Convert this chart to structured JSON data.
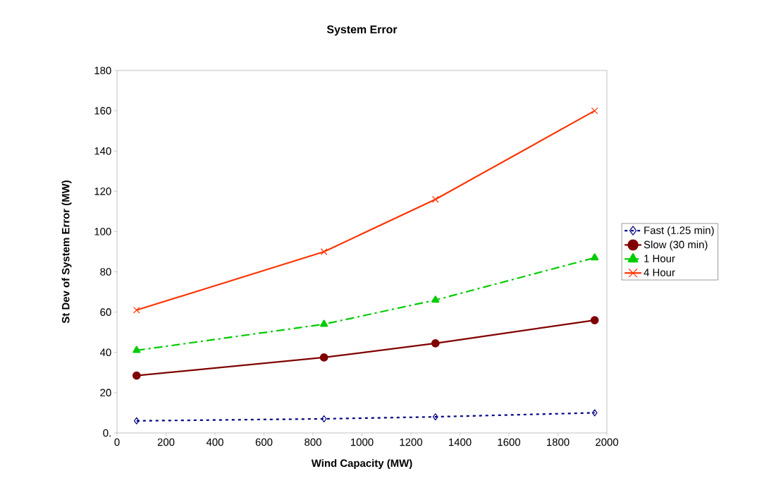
{
  "chart_data": {
    "type": "line",
    "title": "System Error",
    "xlabel": "Wind Capacity (MW)",
    "ylabel": "St Dev of System Error (MW)",
    "x": [
      80,
      845,
      1300,
      1950
    ],
    "series": [
      {
        "name": "Fast (1.25 min)",
        "color": "#000080",
        "values": [
          6,
          7,
          8,
          10
        ],
        "marker": "diamond",
        "line_style": "dotted"
      },
      {
        "name": "Slow (30 min)",
        "color": "#800000",
        "values": [
          28.5,
          37.5,
          44.5,
          56
        ],
        "marker": "circle",
        "line_style": "solid"
      },
      {
        "name": "1 Hour",
        "color": "#00cc00",
        "values": [
          41,
          54,
          66,
          87
        ],
        "marker": "triangle",
        "line_style": "dashed"
      },
      {
        "name": "4 Hour",
        "color": "#ff3300",
        "values": [
          61,
          90,
          116,
          160
        ],
        "marker": "cross",
        "line_style": "solid"
      }
    ],
    "xlim": [
      0,
      2000
    ],
    "xticks": [
      0,
      200,
      400,
      600,
      800,
      1000,
      1200,
      1400,
      1600,
      1800,
      2000
    ],
    "ylim": [
      0,
      180
    ],
    "yticks": [
      {
        "value": 0,
        "label": "0."
      },
      20,
      40,
      60,
      80,
      100,
      120,
      140,
      160,
      180
    ],
    "grid": false,
    "legend": "right"
  }
}
